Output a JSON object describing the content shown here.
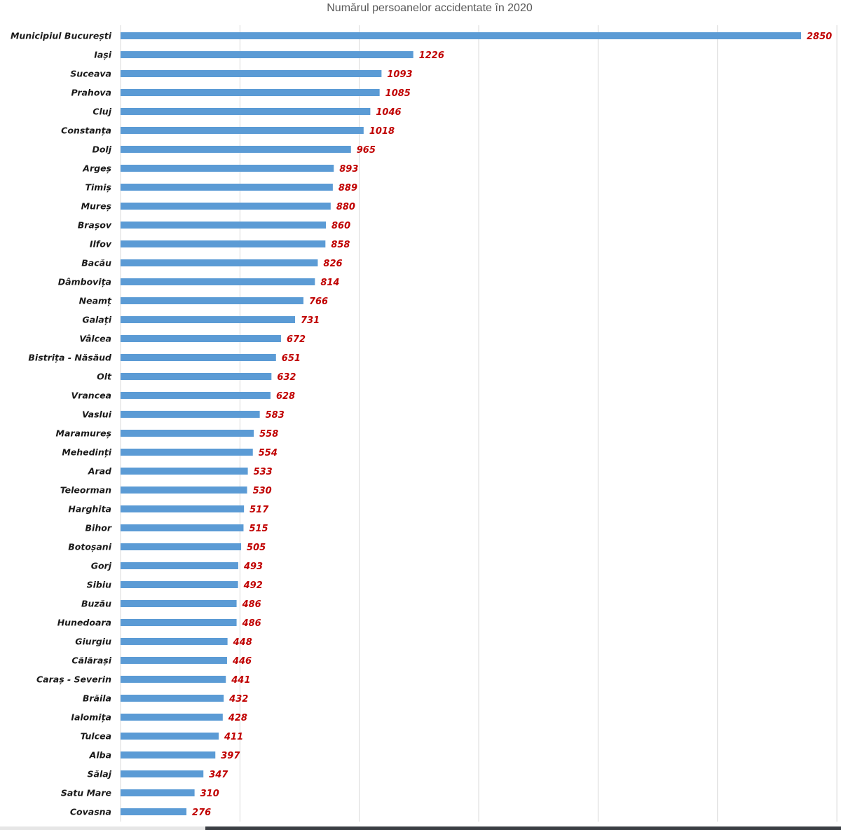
{
  "chart_data": {
    "type": "bar",
    "orientation": "horizontal",
    "title": "Numărul persoanelor accidentate în 2020",
    "xlabel": "",
    "ylabel": "",
    "xlim": [
      0,
      3000
    ],
    "grid": true,
    "legend": "none",
    "bar_color": "#5b9bd5",
    "label_color": "#c00000",
    "categories": [
      "Municipiul București",
      "Iași",
      "Suceava",
      "Prahova",
      "Cluj",
      "Constanța",
      "Dolj",
      "Argeș",
      "Timiș",
      "Mureș",
      "Brașov",
      "Ilfov",
      "Bacău",
      "Dâmbovița",
      "Neamț",
      "Galați",
      "Vâlcea",
      "Bistrița - Năsăud",
      "Olt",
      "Vrancea",
      "Vaslui",
      "Maramureș",
      "Mehedinți",
      "Arad",
      "Teleorman",
      "Harghita",
      "Bihor",
      "Botoșani",
      "Gorj",
      "Sibiu",
      "Buzău",
      "Hunedoara",
      "Giurgiu",
      "Călărași",
      "Caraș - Severin",
      "Brăila",
      "Ialomița",
      "Tulcea",
      "Alba",
      "Sălaj",
      "Satu Mare",
      "Covasna"
    ],
    "values": [
      2850,
      1226,
      1093,
      1085,
      1046,
      1018,
      965,
      893,
      889,
      880,
      860,
      858,
      826,
      814,
      766,
      731,
      672,
      651,
      632,
      628,
      583,
      558,
      554,
      533,
      530,
      517,
      515,
      505,
      493,
      492,
      486,
      486,
      448,
      446,
      441,
      432,
      428,
      411,
      397,
      347,
      310,
      276
    ]
  }
}
